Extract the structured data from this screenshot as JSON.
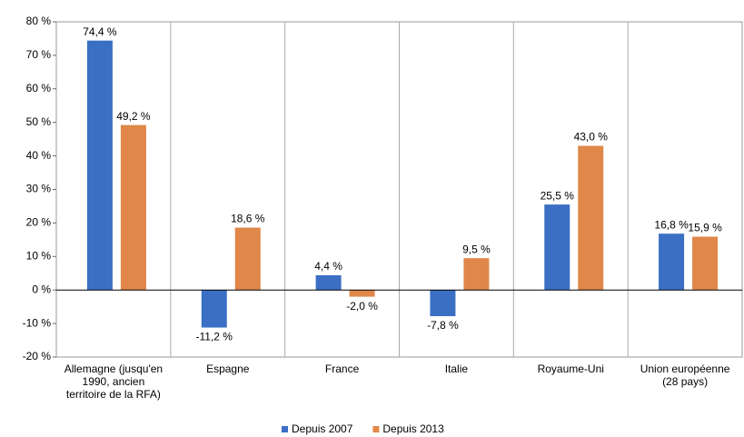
{
  "chart_data": {
    "type": "bar",
    "categories": [
      "Allemagne (jusqu'en 1990, ancien territoire de la RFA)",
      "Espagne",
      "France",
      "Italie",
      "Royaume-Uni",
      "Union européenne (28 pays)"
    ],
    "series": [
      {
        "name": "Depuis 2007",
        "color": "#3a6fc4",
        "values": [
          74.4,
          -11.2,
          4.4,
          -7.8,
          25.5,
          16.8
        ],
        "value_labels": [
          "74,4 %",
          "-11,2 %",
          "4,4 %",
          "-7,8 %",
          "25,5 %",
          "16,8 %"
        ]
      },
      {
        "name": "Depuis 2013",
        "color": "#e0874a",
        "values": [
          49.2,
          18.6,
          -2.0,
          9.5,
          43.0,
          15.9
        ],
        "value_labels": [
          "49,2 %",
          "18,6 %",
          "-2,0 %",
          "9,5 %",
          "43,0 %",
          "15,9 %"
        ]
      }
    ],
    "ylim": [
      -20,
      80
    ],
    "yticks": [
      {
        "value": -20,
        "label": "-20 %"
      },
      {
        "value": -10,
        "label": "-10 %"
      },
      {
        "value": 0,
        "label": "0 %"
      },
      {
        "value": 10,
        "label": "10 %"
      },
      {
        "value": 20,
        "label": "20 %"
      },
      {
        "value": 30,
        "label": "30 %"
      },
      {
        "value": 40,
        "label": "40 %"
      },
      {
        "value": 50,
        "label": "50 %"
      },
      {
        "value": 60,
        "label": "60 %"
      },
      {
        "value": 70,
        "label": "70 %"
      },
      {
        "value": 80,
        "label": "80 %"
      }
    ],
    "legend": "bottom"
  }
}
